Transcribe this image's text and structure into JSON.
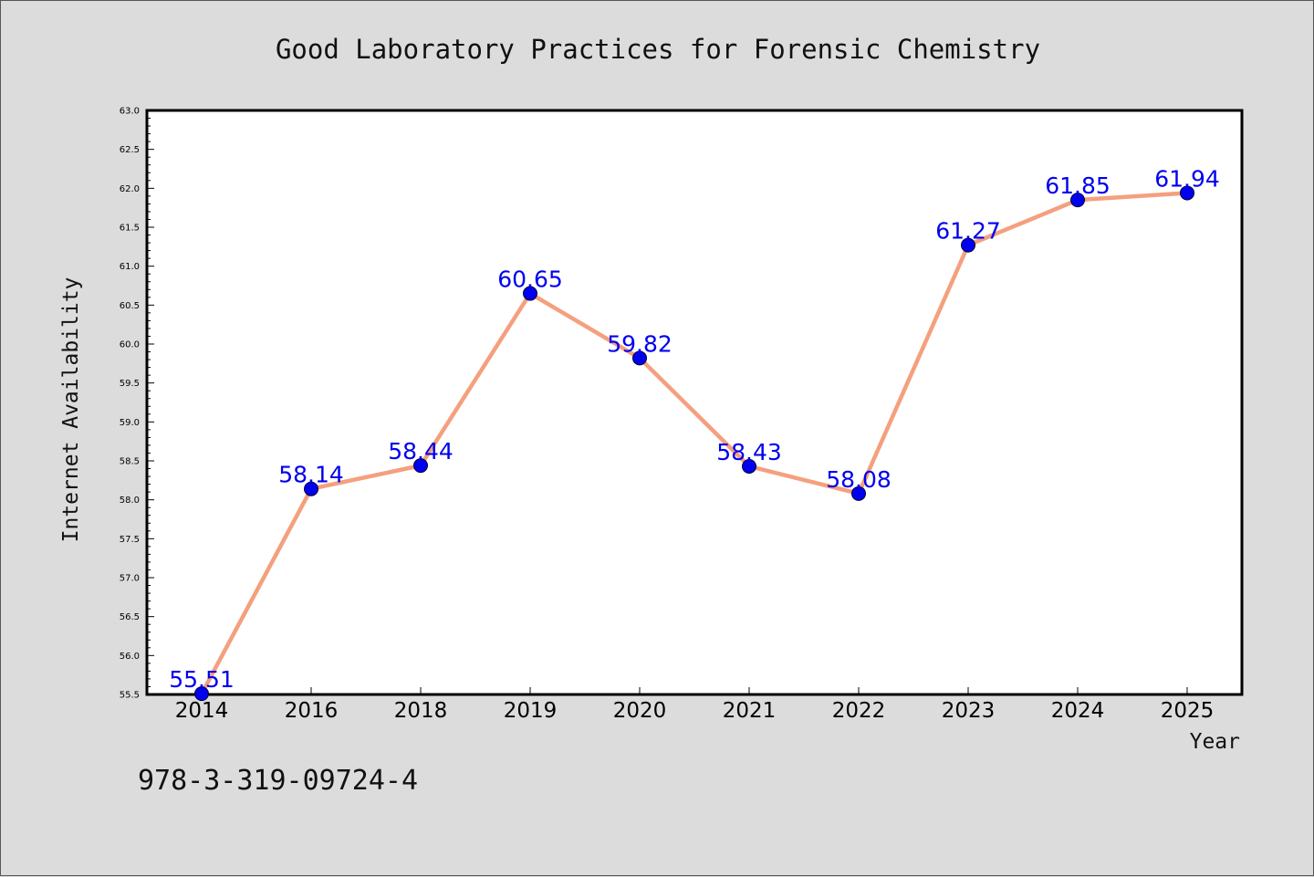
{
  "chart_data": {
    "type": "line",
    "title": "Good Laboratory Practices for Forensic Chemistry",
    "xlabel": "Year",
    "ylabel": "Internet Availability",
    "categories": [
      "2014",
      "2016",
      "2018",
      "2019",
      "2020",
      "2021",
      "2022",
      "2023",
      "2024",
      "2025"
    ],
    "series": [
      {
        "values": [
          55.51,
          58.14,
          58.44,
          60.65,
          59.82,
          58.43,
          58.08,
          61.27,
          61.85,
          61.94
        ],
        "line_color": "#f4a07e",
        "marker_color": "#0000ee",
        "label_color": "#0000ee"
      }
    ],
    "ylim": [
      55.5,
      63.0
    ],
    "yticks": [
      "55.5",
      "56.0",
      "56.5",
      "57.0",
      "57.5",
      "58.0",
      "58.5",
      "59.0",
      "59.5",
      "60.0",
      "60.5",
      "61.0",
      "61.5",
      "62.0",
      "62.5",
      "63.0"
    ],
    "grid": false,
    "legend": "none"
  },
  "footer": {
    "isbn": "978-3-319-09724-4"
  }
}
